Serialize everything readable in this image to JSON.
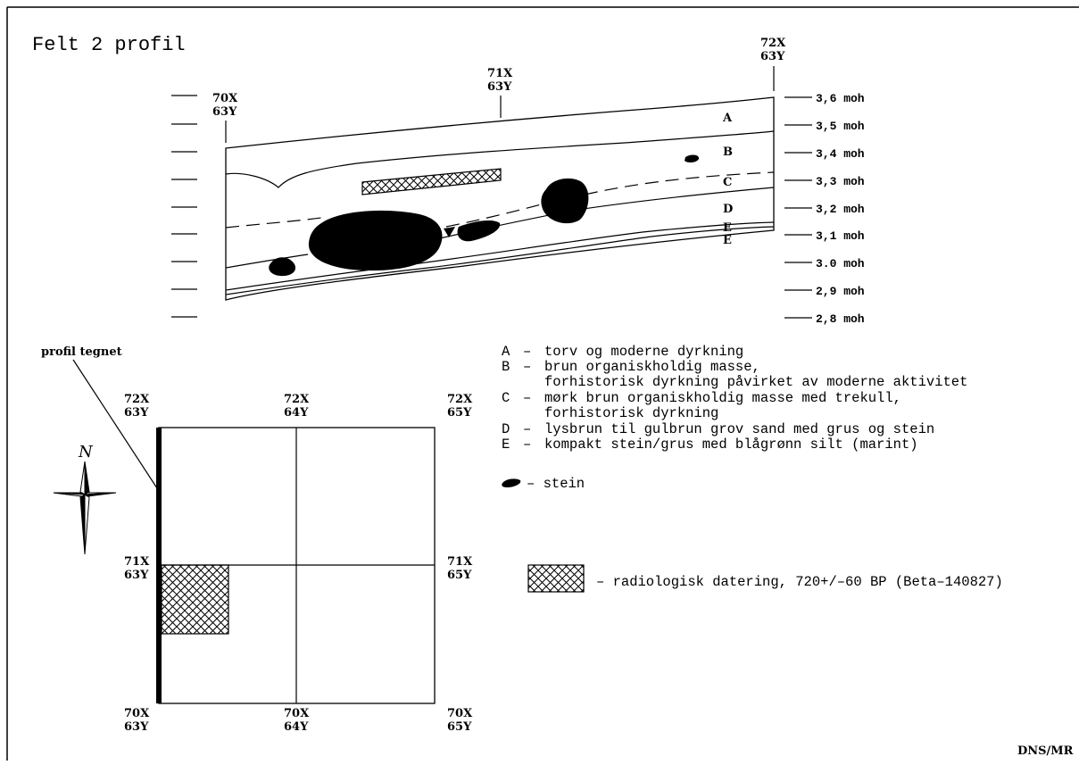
{
  "title": "Felt 2 profil",
  "profile": {
    "top_markers": [
      {
        "x_label": "70X",
        "y_label": "63Y"
      },
      {
        "x_label": "71X",
        "y_label": "63Y"
      },
      {
        "x_label": "72X",
        "y_label": "63Y"
      }
    ],
    "elevations": [
      "3,6 moh",
      "3,5 moh",
      "3,4 moh",
      "3,3 moh",
      "3,2 moh",
      "3,1 moh",
      "3.0 moh",
      "2,9 moh",
      "2,8 moh"
    ],
    "layer_letters": [
      "A",
      "B",
      "C",
      "D",
      "E",
      "E"
    ]
  },
  "plan": {
    "drawn_profile_label": "profil tegnet",
    "north_label": "N",
    "corners": [
      {
        "x_label": "72X",
        "y_label": "63Y"
      },
      {
        "x_label": "72X",
        "y_label": "64Y"
      },
      {
        "x_label": "72X",
        "y_label": "65Y"
      },
      {
        "x_label": "71X",
        "y_label": "63Y"
      },
      {
        "x_label": "71X",
        "y_label": "65Y"
      },
      {
        "x_label": "70X",
        "y_label": "63Y"
      },
      {
        "x_label": "70X",
        "y_label": "64Y"
      },
      {
        "x_label": "70X",
        "y_label": "65Y"
      }
    ]
  },
  "legend": {
    "layers": [
      {
        "letter": "A",
        "dash": "–",
        "lines": [
          "torv og moderne dyrkning"
        ]
      },
      {
        "letter": "B",
        "dash": "–",
        "lines": [
          "brun organiskholdig masse,",
          "forhistorisk dyrkning påvirket av moderne aktivitet"
        ]
      },
      {
        "letter": "C",
        "dash": "–",
        "lines": [
          "mørk brun organiskholdig masse med trekull,",
          "forhistorisk dyrkning"
        ]
      },
      {
        "letter": "D",
        "dash": "–",
        "lines": [
          "lysbrun til gulbrun grov sand med grus og stein"
        ]
      },
      {
        "letter": "E",
        "dash": "–",
        "lines": [
          "kompakt stein/grus med blågrønn silt (marint)"
        ]
      }
    ],
    "stone_label": "– stein",
    "dating_label": "– radiologisk datering, 720+/–60 BP (Beta–140827)"
  },
  "credit": "DNS/MR"
}
